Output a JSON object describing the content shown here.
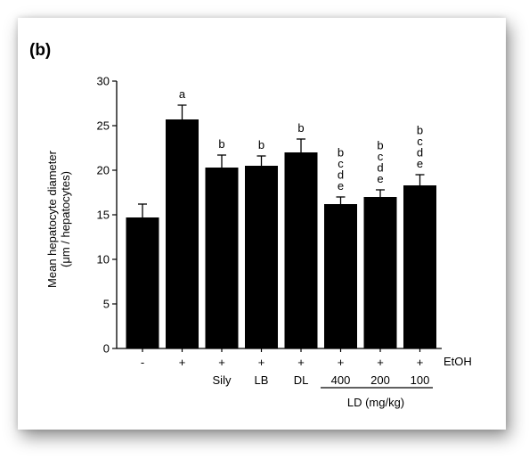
{
  "panel_label": "(b)",
  "chart_data": {
    "type": "bar",
    "title": "",
    "ylabel_line1": "Mean hepatocyte diameter",
    "ylabel_line2": "(μm / hepatocytes)",
    "ylim": [
      0,
      30
    ],
    "yticks": [
      0,
      5,
      10,
      15,
      20,
      25,
      30
    ],
    "grid": false,
    "ethanol_row_label": "EtOH",
    "group_label": "LD (mg/kg)",
    "categories": [
      {
        "etoh": "-",
        "treatment": ""
      },
      {
        "etoh": "+",
        "treatment": ""
      },
      {
        "etoh": "+",
        "treatment": "Sily"
      },
      {
        "etoh": "+",
        "treatment": "LB"
      },
      {
        "etoh": "+",
        "treatment": "DL"
      },
      {
        "etoh": "+",
        "treatment": "400"
      },
      {
        "etoh": "+",
        "treatment": "200"
      },
      {
        "etoh": "+",
        "treatment": "100"
      }
    ],
    "values": [
      14.7,
      25.7,
      20.3,
      20.5,
      22.0,
      16.2,
      17.0,
      18.3
    ],
    "errors": [
      1.5,
      1.6,
      1.4,
      1.1,
      1.5,
      0.8,
      0.8,
      1.2
    ],
    "significance": [
      [],
      [
        "a"
      ],
      [
        "b"
      ],
      [
        "b"
      ],
      [
        "b"
      ],
      [
        "b",
        "c",
        "d",
        "e"
      ],
      [
        "b",
        "c",
        "d",
        "e"
      ],
      [
        "b",
        "c",
        "d",
        "e"
      ]
    ],
    "bar_color": "#000000"
  }
}
